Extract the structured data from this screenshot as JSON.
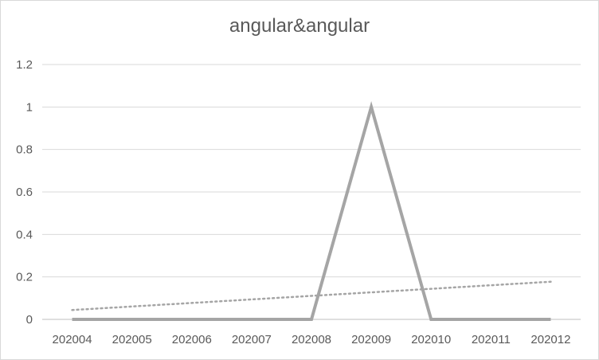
{
  "chart_data": {
    "type": "line",
    "title": "angular&angular",
    "categories": [
      "202004",
      "202005",
      "202006",
      "202007",
      "202008",
      "202009",
      "202010",
      "202011",
      "202012"
    ],
    "series": [
      {
        "values": [
          0,
          0,
          0,
          0,
          0,
          1,
          0,
          0,
          0
        ],
        "color": "#a5a5a5",
        "style": "solid"
      },
      {
        "trendline": "linear",
        "values": [
          0.044,
          0.0607,
          0.0773,
          0.094,
          0.1107,
          0.1273,
          0.144,
          0.1607,
          0.1773
        ],
        "color": "#a5a5a5",
        "style": "dotted"
      }
    ],
    "ylim": [
      0,
      1.2
    ],
    "yticks": [
      "0",
      "0.2",
      "0.4",
      "0.6",
      "0.8",
      "1",
      "1.2"
    ],
    "grid": true,
    "legend": "none"
  }
}
